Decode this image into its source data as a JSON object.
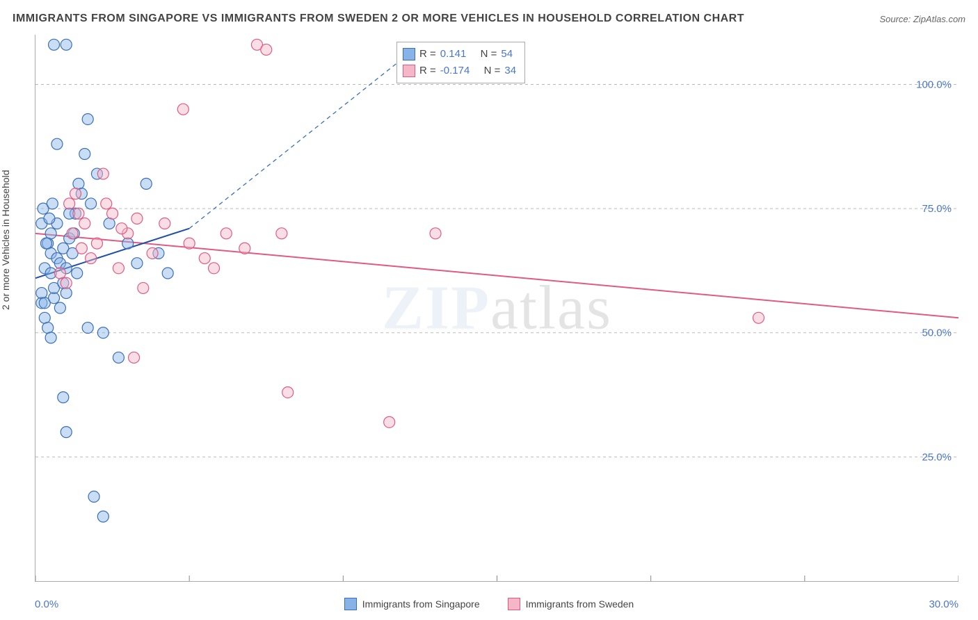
{
  "title": "IMMIGRANTS FROM SINGAPORE VS IMMIGRANTS FROM SWEDEN 2 OR MORE VEHICLES IN HOUSEHOLD CORRELATION CHART",
  "source": "Source: ZipAtlas.com",
  "watermark": {
    "brand_prefix": "ZIP",
    "brand_suffix": "atlas"
  },
  "chart": {
    "type": "scatter",
    "y_axis_label": "2 or more Vehicles in Household",
    "background_color": "#ffffff",
    "grid_color": "#bbbbbb",
    "axis_color": "#aaaaaa",
    "tick_label_color": "#4a76c7",
    "xlim": [
      0,
      30
    ],
    "ylim": [
      0,
      110
    ],
    "y_ticks": [
      25,
      50,
      75,
      100
    ],
    "y_tick_labels": [
      "25.0%",
      "50.0%",
      "75.0%",
      "100.0%"
    ],
    "x_ticks": [
      0,
      5,
      10,
      15,
      20,
      25,
      30
    ],
    "x_min_label": "0.0%",
    "x_max_label": "30.0%",
    "marker_radius": 8,
    "series": [
      {
        "name": "Immigrants from Singapore",
        "fill": "#87b3e8",
        "stroke": "#3b6fb5",
        "R": "0.141",
        "N": "54",
        "trend": {
          "x1": 0,
          "y1": 61,
          "x2": 5,
          "y2": 71,
          "dash_to_x": 12.5,
          "dash_to_y": 108
        },
        "points": [
          [
            0.2,
            56
          ],
          [
            0.2,
            58
          ],
          [
            0.3,
            56
          ],
          [
            0.3,
            63
          ],
          [
            0.4,
            68
          ],
          [
            0.5,
            70
          ],
          [
            0.5,
            66
          ],
          [
            0.5,
            62
          ],
          [
            0.6,
            57
          ],
          [
            0.6,
            59
          ],
          [
            0.7,
            65
          ],
          [
            0.7,
            72
          ],
          [
            0.8,
            55
          ],
          [
            0.8,
            64
          ],
          [
            0.9,
            60
          ],
          [
            0.9,
            67
          ],
          [
            1.0,
            58
          ],
          [
            1.0,
            63
          ],
          [
            1.1,
            69
          ],
          [
            1.2,
            66
          ],
          [
            1.3,
            74
          ],
          [
            1.4,
            80
          ],
          [
            1.5,
            78
          ],
          [
            1.6,
            86
          ],
          [
            1.8,
            76
          ],
          [
            2.0,
            82
          ],
          [
            2.2,
            50
          ],
          [
            2.4,
            72
          ],
          [
            2.7,
            45
          ],
          [
            3.0,
            68
          ],
          [
            3.3,
            64
          ],
          [
            3.6,
            80
          ],
          [
            4.0,
            66
          ],
          [
            4.3,
            62
          ],
          [
            1.0,
            108
          ],
          [
            0.6,
            108
          ],
          [
            1.7,
            93
          ],
          [
            0.7,
            88
          ],
          [
            0.9,
            37
          ],
          [
            1.0,
            30
          ],
          [
            1.7,
            51
          ],
          [
            1.9,
            17
          ],
          [
            2.2,
            13
          ],
          [
            0.3,
            53
          ],
          [
            0.4,
            51
          ],
          [
            0.5,
            49
          ],
          [
            0.2,
            72
          ],
          [
            0.25,
            75
          ],
          [
            0.35,
            68
          ],
          [
            0.45,
            73
          ],
          [
            0.55,
            76
          ],
          [
            1.1,
            74
          ],
          [
            1.25,
            70
          ],
          [
            1.35,
            62
          ]
        ]
      },
      {
        "name": "Immigrants from Sweden",
        "fill": "#f5b6c8",
        "stroke": "#e15a82",
        "R": "-0.174",
        "N": "34",
        "trend": {
          "x1": 0,
          "y1": 70,
          "x2": 30,
          "y2": 53
        },
        "points": [
          [
            0.8,
            62
          ],
          [
            1.0,
            60
          ],
          [
            1.2,
            70
          ],
          [
            1.4,
            74
          ],
          [
            1.5,
            67
          ],
          [
            1.6,
            72
          ],
          [
            1.8,
            65
          ],
          [
            2.0,
            68
          ],
          [
            2.2,
            82
          ],
          [
            2.5,
            74
          ],
          [
            2.7,
            63
          ],
          [
            3.0,
            70
          ],
          [
            3.2,
            45
          ],
          [
            3.5,
            59
          ],
          [
            3.8,
            66
          ],
          [
            4.2,
            72
          ],
          [
            4.8,
            95
          ],
          [
            5.0,
            68
          ],
          [
            5.5,
            65
          ],
          [
            5.8,
            63
          ],
          [
            6.2,
            70
          ],
          [
            6.8,
            67
          ],
          [
            7.2,
            108
          ],
          [
            7.5,
            107
          ],
          [
            8.0,
            70
          ],
          [
            8.2,
            38
          ],
          [
            11.5,
            32
          ],
          [
            13.0,
            70
          ],
          [
            23.5,
            53
          ],
          [
            1.1,
            76
          ],
          [
            1.3,
            78
          ],
          [
            2.3,
            76
          ],
          [
            2.8,
            71
          ],
          [
            3.3,
            73
          ]
        ]
      }
    ]
  },
  "stats_legend": {
    "r_label": "R =",
    "n_label": "N ="
  },
  "bottom_legend_labels": [
    "Immigrants from Singapore",
    "Immigrants from Sweden"
  ]
}
